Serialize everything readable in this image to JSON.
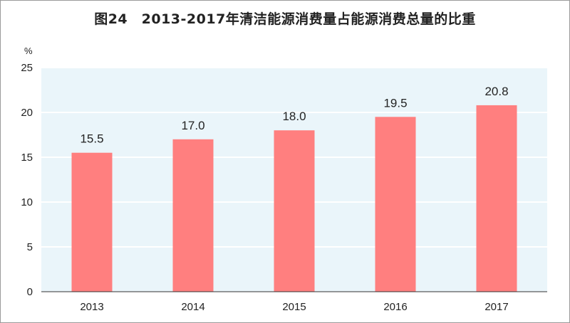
{
  "title": "图24　2013-2017年清洁能源消费量占能源消费总量的比重",
  "chart_data": {
    "type": "bar",
    "title": "图24　2013-2017年清洁能源消费量占能源消费总量的比重",
    "unit": "%",
    "categories": [
      "2013",
      "2014",
      "2015",
      "2016",
      "2017"
    ],
    "values": [
      15.5,
      17.0,
      18.0,
      19.5,
      20.8
    ],
    "value_labels": [
      "15.5",
      "17.0",
      "18.0",
      "19.5",
      "20.8"
    ],
    "ylim": [
      0,
      25
    ],
    "yticks": [
      0,
      5,
      10,
      15,
      20,
      25
    ],
    "grid": true,
    "legend": "none",
    "colors": {
      "bar": "#ff7f7f",
      "plot_background": "#eaf5fa",
      "grid": "#ffffff",
      "axis": "#333333"
    }
  }
}
